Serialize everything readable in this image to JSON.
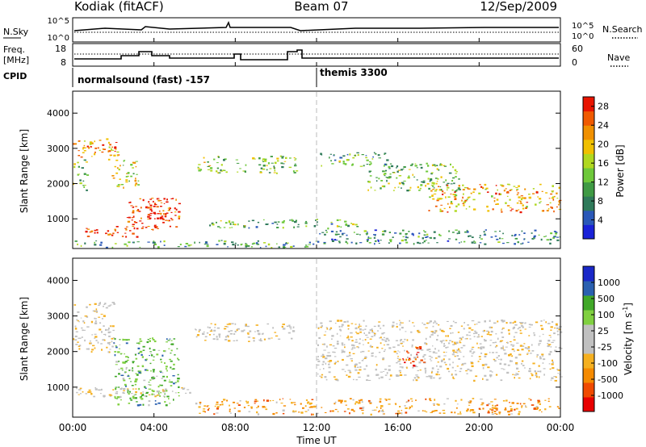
{
  "header": {
    "station": "Kodiak (fitACF)",
    "beam": "Beam 07",
    "date": "12/Sep/2009"
  },
  "top_panels": {
    "nsky_label": "N.Sky",
    "nsky_ticks": [
      "10^5",
      "10^0"
    ],
    "nsearch_label": "N.Search",
    "nsearch_ticks": [
      "10^5",
      "10^0"
    ],
    "freq_label": "Freq.",
    "freq_unit": "[MHz]",
    "freq_ticks": [
      "18",
      "8"
    ],
    "nave_label": "Nave",
    "nave_ticks": [
      "60",
      "0"
    ],
    "cpid_label": "CPID",
    "cpid_segments": [
      {
        "label": "normalsound (fast) -157",
        "start_h": 0
      },
      {
        "label": "themis 3300",
        "start_h": 12
      }
    ]
  },
  "colors": {
    "power_scale": [
      "#1a22d8",
      "#2a58b8",
      "#2f7a5a",
      "#3f9a44",
      "#6ec83a",
      "#b0d820",
      "#f0c000",
      "#f09000",
      "#f05a00",
      "#e81400"
    ],
    "velocity_scale": [
      "#e80000",
      "#f04a00",
      "#f58a00",
      "#f5b020",
      "#c0c0c0",
      "#c0c0c0",
      "#80d040",
      "#40a828",
      "#2a60b0",
      "#1a28c8"
    ],
    "ground_scatter": "#c0c0c0"
  },
  "chart_data": [
    {
      "type": "heatmap",
      "panel": "power",
      "xlabel": "Time UT",
      "ylabel": "Slant Range [km]",
      "x_ticks": [
        "00:00",
        "04:00",
        "08:00",
        "12:00",
        "16:00",
        "20:00",
        "00:00"
      ],
      "xlim_hours": [
        0,
        24
      ],
      "y_ticks": [
        1000,
        2000,
        3000,
        4000
      ],
      "ylim": [
        180,
        4600
      ],
      "colorbar_label": "Power [dB]",
      "colorbar_ticks": [
        4,
        8,
        12,
        16,
        20,
        24,
        28
      ],
      "colorbar_range": [
        0,
        30
      ],
      "regions": [
        {
          "t0": 0.0,
          "t1": 2.2,
          "r0": 2700,
          "r1": 3300,
          "level": 0.75
        },
        {
          "t0": 0.0,
          "t1": 0.7,
          "r0": 1800,
          "r1": 2700,
          "level": 0.45
        },
        {
          "t0": 1.8,
          "t1": 3.2,
          "r0": 1900,
          "r1": 2700,
          "level": 0.6
        },
        {
          "t0": 0.5,
          "t1": 3.2,
          "r0": 500,
          "r1": 800,
          "level": 0.95
        },
        {
          "t0": 2.6,
          "t1": 5.2,
          "r0": 700,
          "r1": 1600,
          "level": 0.9
        },
        {
          "t0": 3.6,
          "t1": 5.0,
          "r0": 1000,
          "r1": 1600,
          "level": 0.95
        },
        {
          "t0": 0.0,
          "t1": 12.0,
          "r0": 200,
          "r1": 400,
          "level": 0.35
        },
        {
          "t0": 6.0,
          "t1": 7.6,
          "r0": 2300,
          "r1": 2800,
          "level": 0.5
        },
        {
          "t0": 8.0,
          "t1": 11.0,
          "r0": 2300,
          "r1": 2800,
          "level": 0.45
        },
        {
          "t0": 6.5,
          "t1": 14.0,
          "r0": 750,
          "r1": 1000,
          "level": 0.4
        },
        {
          "t0": 12.0,
          "t1": 15.5,
          "r0": 2500,
          "r1": 2900,
          "level": 0.4
        },
        {
          "t0": 14.5,
          "t1": 19.0,
          "r0": 1800,
          "r1": 2600,
          "level": 0.45
        },
        {
          "t0": 17.5,
          "t1": 24.0,
          "r0": 1200,
          "r1": 2000,
          "level": 0.7
        },
        {
          "t0": 12.0,
          "t1": 24.0,
          "r0": 300,
          "r1": 700,
          "level": 0.3
        }
      ]
    },
    {
      "type": "heatmap",
      "panel": "velocity",
      "xlabel": "Time UT",
      "ylabel": "Slant Range [km]",
      "x_ticks": [
        "00:00",
        "04:00",
        "08:00",
        "12:00",
        "16:00",
        "20:00",
        "00:00"
      ],
      "xlim_hours": [
        0,
        24
      ],
      "y_ticks": [
        1000,
        2000,
        3000,
        4000
      ],
      "ylim": [
        180,
        4600
      ],
      "colorbar_label": "Velocity [m s^-1]",
      "colorbar_ticks": [
        "1000",
        "500",
        "100",
        "25",
        "-25",
        "-100",
        "-500",
        "-1000"
      ],
      "regions": [
        {
          "t0": 0.0,
          "t1": 2.0,
          "r0": 2000,
          "r1": 3400,
          "level": 0.45
        },
        {
          "t0": 2.0,
          "t1": 5.2,
          "r0": 500,
          "r1": 2400,
          "level": 0.7
        },
        {
          "t0": 0.0,
          "t1": 6.0,
          "r0": 750,
          "r1": 1000,
          "level": 0.45
        },
        {
          "t0": 6.0,
          "t1": 11.0,
          "r0": 2300,
          "r1": 2800,
          "level": 0.45
        },
        {
          "t0": 12.0,
          "t1": 24.0,
          "r0": 1200,
          "r1": 2900,
          "level": 0.45
        },
        {
          "t0": 16.2,
          "t1": 17.3,
          "r0": 1600,
          "r1": 2200,
          "level": 0.15
        },
        {
          "t0": 6.0,
          "t1": 24.0,
          "r0": 250,
          "r1": 700,
          "level": 0.3
        }
      ]
    }
  ]
}
